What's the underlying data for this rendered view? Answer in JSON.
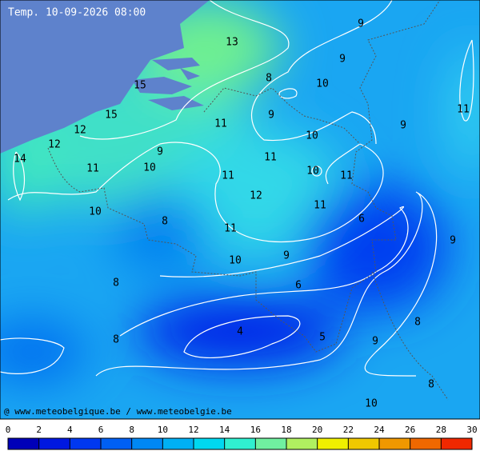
{
  "title": "Temp. 10-09-2026 08:00",
  "credit": "@ www.meteobelgique.be / www.meteobelgie.be",
  "contour_labels": [
    13,
    9,
    9,
    8,
    10,
    15,
    11,
    15,
    9,
    11,
    9,
    12,
    10,
    12,
    9,
    11,
    14,
    11,
    10,
    10,
    11,
    11,
    12,
    11,
    10,
    8,
    6,
    11,
    9,
    9,
    10,
    8,
    6,
    8,
    4,
    5,
    8,
    9,
    8,
    10
  ],
  "scale": {
    "ticks": [
      0,
      2,
      4,
      6,
      8,
      10,
      12,
      14,
      16,
      18,
      20,
      22,
      24,
      26,
      28,
      30
    ],
    "colors": [
      "#0000b8",
      "#0018e0",
      "#0038f0",
      "#0060f4",
      "#0088f4",
      "#00b0f4",
      "#00d8f0",
      "#30f0d0",
      "#70f0a0",
      "#b0f060",
      "#f0f000",
      "#f0c800",
      "#f09800",
      "#f06800",
      "#f02800"
    ]
  }
}
